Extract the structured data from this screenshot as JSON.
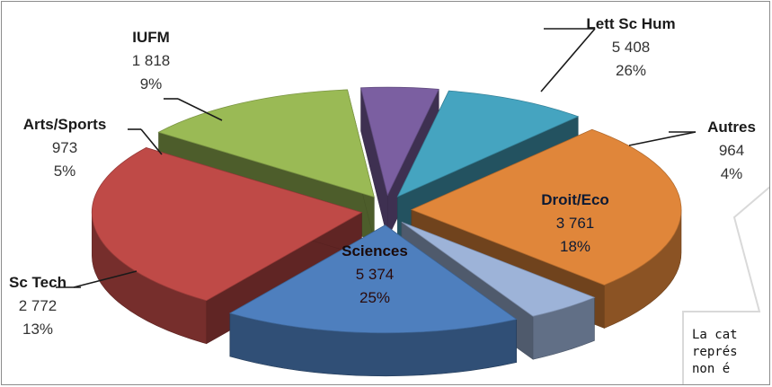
{
  "chart_data": {
    "type": "pie",
    "title": "",
    "exploded": true,
    "three_d": true,
    "slices": [
      {
        "label": "Lett Sc Hum",
        "value": "5 408",
        "percent": "26%",
        "value_num": 5408,
        "color": "#e0863a",
        "label_position": "outside"
      },
      {
        "label": "Autres",
        "value": "964",
        "percent": "4%",
        "value_num": 964,
        "color": "#9db3d8",
        "label_position": "outside"
      },
      {
        "label": "Droit/Eco",
        "value": "3 761",
        "percent": "18%",
        "value_num": 3761,
        "color": "#4e7fbe",
        "label_position": "inside"
      },
      {
        "label": "Sciences",
        "value": "5 374",
        "percent": "25%",
        "value_num": 5374,
        "color": "#bf4a47",
        "label_position": "inside"
      },
      {
        "label": "Sc Tech",
        "value": "2 772",
        "percent": "13%",
        "value_num": 2772,
        "color": "#9aba55",
        "label_position": "outside"
      },
      {
        "label": "Arts/Sports",
        "value": "973",
        "percent": "5%",
        "value_num": 973,
        "color": "#7b5fa1",
        "label_position": "outside"
      },
      {
        "label": "IUFM",
        "value": "1 818",
        "percent": "9%",
        "value_num": 1818,
        "color": "#45a4c0",
        "label_position": "outside"
      }
    ]
  },
  "callout": {
    "lines": [
      "La cat",
      "représ",
      "non é"
    ]
  }
}
